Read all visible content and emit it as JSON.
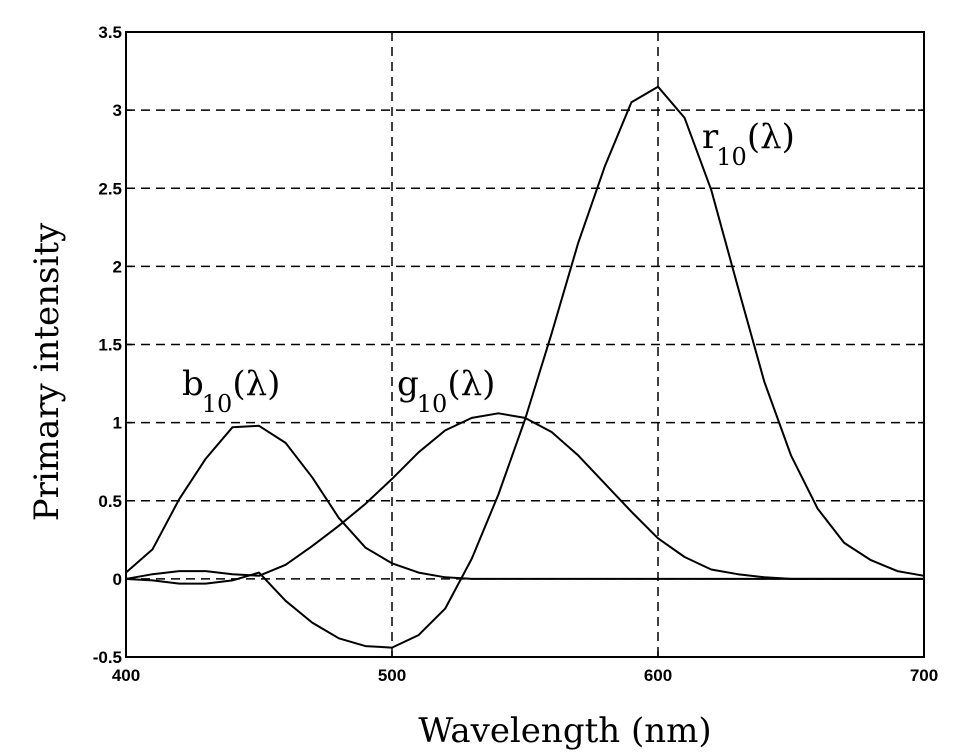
{
  "chart_data": {
    "type": "line",
    "title": "",
    "xlabel": "Wavelength (nm)",
    "ylabel": "Primary intensity",
    "xlim": [
      400,
      700
    ],
    "ylim": [
      -0.5,
      3.5
    ],
    "xticks": [
      400,
      500,
      600,
      700
    ],
    "yticks": [
      -0.5,
      0,
      0.5,
      1,
      1.5,
      2,
      2.5,
      3,
      3.5
    ],
    "xtick_labels": [
      "400",
      "500",
      "600",
      "700"
    ],
    "ytick_labels": [
      "-0.5",
      "0",
      "0.5",
      "1",
      "1.5",
      "2",
      "2.5",
      "3",
      "3.5"
    ],
    "grid": true,
    "grid_style": "dashed",
    "legend": "inline labels",
    "x": [
      400,
      410,
      420,
      430,
      440,
      450,
      460,
      470,
      480,
      490,
      500,
      510,
      520,
      530,
      540,
      550,
      560,
      570,
      580,
      590,
      600,
      610,
      620,
      630,
      640,
      650,
      660,
      670,
      680,
      690,
      700
    ],
    "series": [
      {
        "name": "r10(λ)",
        "label_main": "r",
        "label_sub": "10",
        "label_suffix": "(λ)",
        "values": [
          0.0,
          -0.01,
          -0.03,
          -0.03,
          -0.01,
          0.04,
          -0.14,
          -0.28,
          -0.38,
          -0.43,
          -0.44,
          -0.36,
          -0.19,
          0.13,
          0.54,
          1.02,
          1.57,
          2.15,
          2.64,
          3.05,
          3.15,
          2.95,
          2.49,
          1.87,
          1.26,
          0.79,
          0.45,
          0.23,
          0.12,
          0.05,
          0.02
        ]
      },
      {
        "name": "g10(λ)",
        "label_main": "g",
        "label_sub": "10",
        "label_suffix": "(λ)",
        "values": [
          0.0,
          0.03,
          0.05,
          0.05,
          0.03,
          0.02,
          0.09,
          0.21,
          0.34,
          0.48,
          0.64,
          0.81,
          0.95,
          1.03,
          1.06,
          1.03,
          0.94,
          0.79,
          0.61,
          0.43,
          0.26,
          0.14,
          0.06,
          0.03,
          0.01,
          0.0,
          0.0,
          0.0,
          0.0,
          0.0,
          0.0
        ]
      },
      {
        "name": "b10(λ)",
        "label_main": "b",
        "label_sub": "10",
        "label_suffix": "(λ)",
        "values": [
          0.04,
          0.19,
          0.51,
          0.77,
          0.97,
          0.98,
          0.87,
          0.65,
          0.39,
          0.2,
          0.1,
          0.04,
          0.01,
          0.0,
          0.0,
          0.0,
          0.0,
          0.0,
          0.0,
          0.0,
          0.0,
          0.0,
          0.0,
          0.0,
          0.0,
          0.0,
          0.0,
          0.0,
          0.0,
          0.0,
          0.0
        ]
      }
    ],
    "annotations": [
      {
        "text": "b10(λ)",
        "x": 420,
        "y": 1.25
      },
      {
        "text": "g10(λ)",
        "x": 500,
        "y": 1.25
      },
      {
        "text": "r10(λ)",
        "x": 620,
        "y": 2.85
      }
    ]
  },
  "colors": {
    "line": "#000000",
    "grid": "#000000",
    "background": "#ffffff"
  }
}
